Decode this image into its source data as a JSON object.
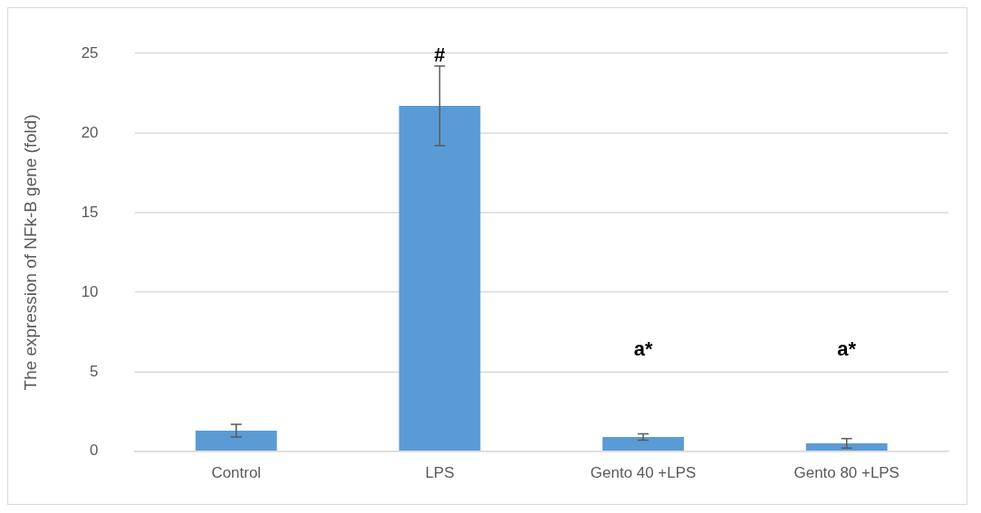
{
  "chart_data": {
    "type": "bar",
    "ylabel": "The expression of NFk-B gene (fold)",
    "categories": [
      "Control",
      "LPS",
      "Gento 40 +LPS",
      "Gento 80 +LPS"
    ],
    "values": [
      1.3,
      21.7,
      0.9,
      0.5
    ],
    "errors": [
      0.4,
      2.5,
      0.2,
      0.3
    ],
    "color": "#5b9bd5",
    "ylim": [
      0,
      25
    ],
    "yticks": [
      0,
      5,
      10,
      15,
      20,
      25
    ],
    "grid": "y",
    "legend": false,
    "annotations": [
      "#",
      "a*",
      "a*"
    ]
  }
}
